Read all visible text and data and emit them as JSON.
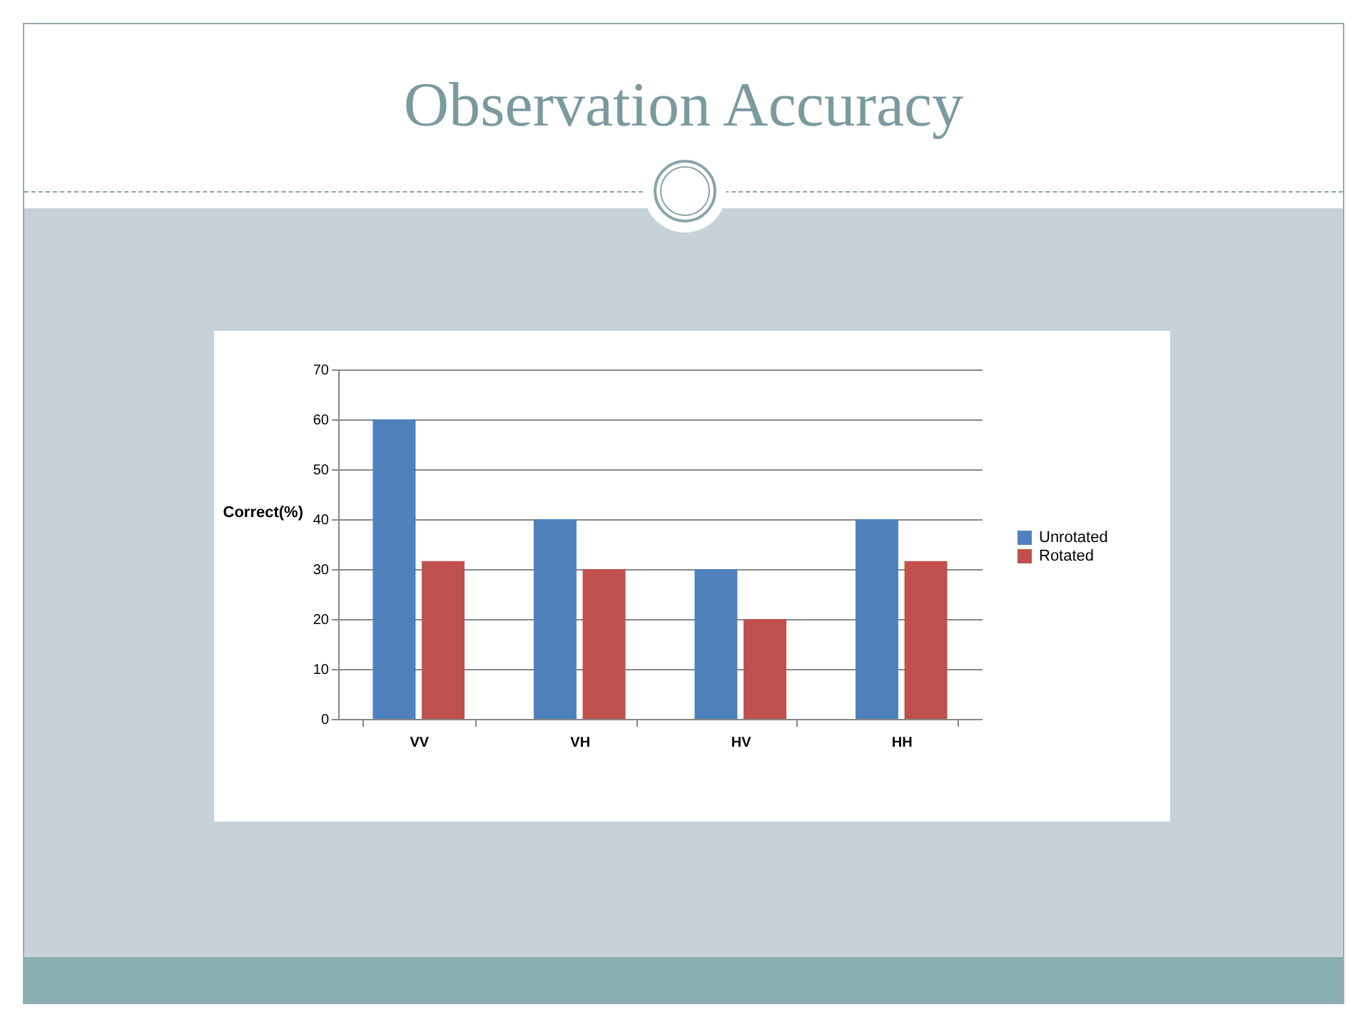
{
  "chart_data": {
    "type": "bar",
    "title": "Observation Accuracy",
    "ylabel": "Correct(%)",
    "categories": [
      "VV",
      "VH",
      "HV",
      "HH"
    ],
    "series": [
      {
        "name": "Unrotated",
        "color": "#4f81bd",
        "values": [
          60,
          40,
          30,
          40
        ]
      },
      {
        "name": "Rotated",
        "color": "#c0504d",
        "values": [
          31.6,
          30,
          20,
          31.6
        ]
      }
    ],
    "ylim": [
      0,
      70
    ],
    "yticks": [
      0,
      10,
      20,
      30,
      40,
      50,
      60,
      70
    ],
    "grid": "y",
    "legend": "right"
  }
}
